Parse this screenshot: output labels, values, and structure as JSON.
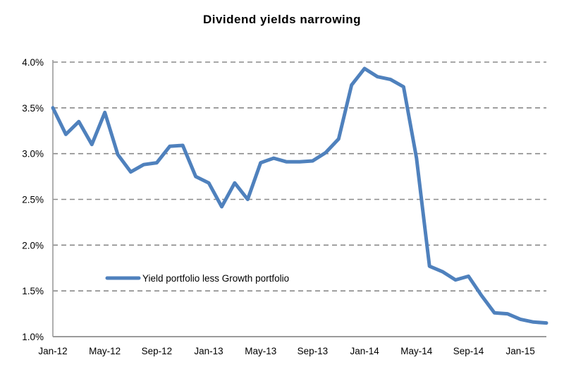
{
  "page": {
    "background": "#ffffff"
  },
  "chart_data": {
    "type": "line",
    "title": "Dividend yields narrowing",
    "categories": [
      "Jan-12",
      "Feb-12",
      "Mar-12",
      "Apr-12",
      "May-12",
      "Jun-12",
      "Jul-12",
      "Aug-12",
      "Sep-12",
      "Oct-12",
      "Nov-12",
      "Dec-12",
      "Jan-13",
      "Feb-13",
      "Mar-13",
      "Apr-13",
      "May-13",
      "Jun-13",
      "Jul-13",
      "Aug-13",
      "Sep-13",
      "Oct-13",
      "Nov-13",
      "Dec-13",
      "Jan-14",
      "Feb-14",
      "Mar-14",
      "Apr-14",
      "May-14",
      "Jun-14",
      "Jul-14",
      "Aug-14",
      "Sep-14",
      "Oct-14",
      "Nov-14",
      "Dec-14",
      "Jan-15",
      "Feb-15",
      "Mar-15"
    ],
    "series": [
      {
        "name": "Yield portfolio less Growth portfolio",
        "color": "#4F81BD",
        "values": [
          3.5,
          3.21,
          3.35,
          3.1,
          3.45,
          2.99,
          2.8,
          2.88,
          2.9,
          3.08,
          3.09,
          2.75,
          2.68,
          2.42,
          2.68,
          2.5,
          2.9,
          2.95,
          2.91,
          2.91,
          2.92,
          3.01,
          3.16,
          3.75,
          3.93,
          3.84,
          3.81,
          3.73,
          2.95,
          1.77,
          1.71,
          1.62,
          1.66,
          1.45,
          1.26,
          1.25,
          1.19,
          1.16,
          1.15
        ]
      }
    ],
    "x_tick_labels": [
      {
        "index": 0,
        "label": "Jan-12"
      },
      {
        "index": 4,
        "label": "May-12"
      },
      {
        "index": 8,
        "label": "Sep-12"
      },
      {
        "index": 12,
        "label": "Jan-13"
      },
      {
        "index": 16,
        "label": "May-13"
      },
      {
        "index": 20,
        "label": "Sep-13"
      },
      {
        "index": 24,
        "label": "Jan-14"
      },
      {
        "index": 28,
        "label": "May-14"
      },
      {
        "index": 32,
        "label": "Sep-14"
      },
      {
        "index": 36,
        "label": "Jan-15"
      }
    ],
    "y_ticks": [
      {
        "value": 4.0,
        "label": "4.0%"
      },
      {
        "value": 3.5,
        "label": "3.5%"
      },
      {
        "value": 3.0,
        "label": "3.0%"
      },
      {
        "value": 2.5,
        "label": "2.5%"
      },
      {
        "value": 2.0,
        "label": "2.0%"
      },
      {
        "value": 1.5,
        "label": "1.5%"
      },
      {
        "value": 1.0,
        "label": "1.0%"
      }
    ],
    "ylim": [
      1.0,
      4.0
    ],
    "grid": "horizontal-dashed",
    "legend": {
      "label": "Yield portfolio less Growth portfolio",
      "position": "inside-left"
    },
    "colors": {
      "line": "#4F81BD",
      "grid": "#8A8A8A",
      "axis": "#9B9B9B",
      "text": "#000000"
    }
  }
}
